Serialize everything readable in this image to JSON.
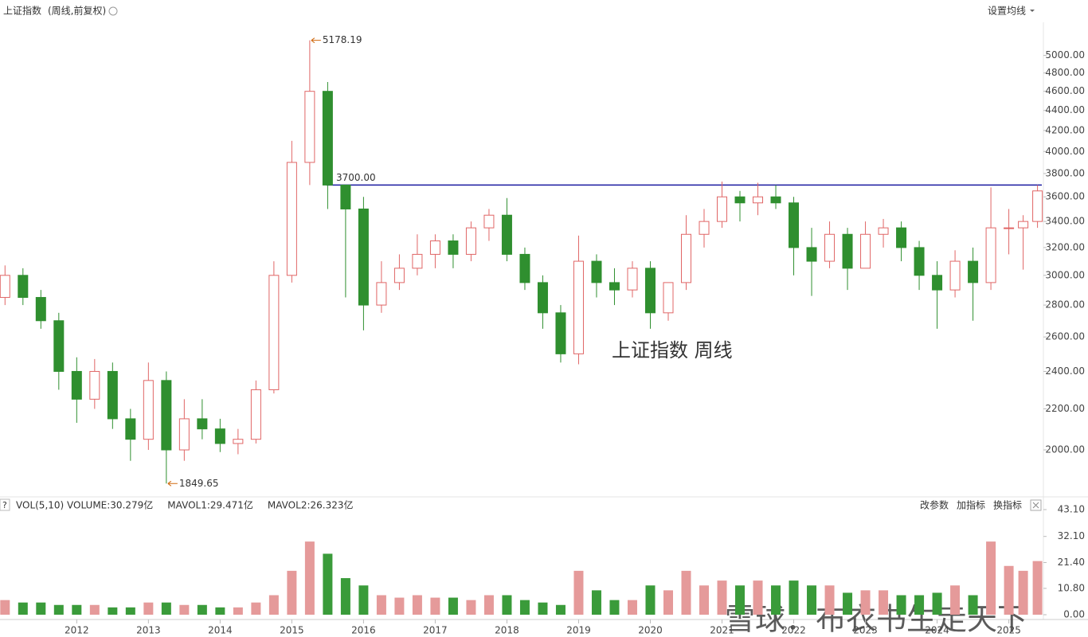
{
  "chart_data": [
    {
      "type": "candlestick",
      "title": "上证指数",
      "subtitle": "(周线,前复权)",
      "menu": "设置均线",
      "annotation": "上证指数  周线",
      "log_scale": true,
      "up_color": "#e06666",
      "down_color": "#2f8f2f",
      "hline": {
        "value": 3700,
        "label": "3700.00",
        "color": "#1a1aa0"
      },
      "x": [
        2011.0,
        2011.25,
        2011.5,
        2011.75,
        2012.0,
        2012.25,
        2012.5,
        2012.75,
        2013.0,
        2013.25,
        2013.5,
        2013.75,
        2014.0,
        2014.25,
        2014.5,
        2014.75,
        2015.0,
        2015.25,
        2015.5,
        2015.75,
        2016.0,
        2016.25,
        2016.5,
        2016.75,
        2017.0,
        2017.25,
        2017.5,
        2017.75,
        2018.0,
        2018.25,
        2018.5,
        2018.75,
        2019.0,
        2019.25,
        2019.5,
        2019.75,
        2020.0,
        2020.25,
        2020.5,
        2020.75,
        2021.0,
        2021.25,
        2021.5,
        2021.75,
        2022.0,
        2022.25,
        2022.5,
        2022.75,
        2023.0,
        2023.25,
        2023.5,
        2023.75,
        2024.0,
        2024.25,
        2024.5,
        2024.75,
        2025.0,
        2025.2,
        2025.4
      ],
      "open": [
        2850,
        3000,
        2850,
        2700,
        2400,
        2250,
        2400,
        2150,
        2050,
        2350,
        2000,
        2150,
        2100,
        2030,
        2050,
        2300,
        3000,
        3900,
        4600,
        3700,
        3500,
        2800,
        2950,
        3050,
        3150,
        3250,
        3150,
        3350,
        3450,
        3150,
        2950,
        2750,
        2500,
        3100,
        2950,
        2900,
        3050,
        2750,
        2950,
        3300,
        3400,
        3600,
        3550,
        3600,
        3550,
        3200,
        3100,
        3300,
        3050,
        3300,
        3350,
        3200,
        3000,
        2900,
        3100,
        2950,
        3350,
        3350,
        3400
      ],
      "high": [
        3070,
        3050,
        2900,
        2750,
        2480,
        2470,
        2450,
        2200,
        2450,
        2400,
        2250,
        2250,
        2150,
        2100,
        2350,
        3100,
        4100,
        5178.19,
        4700,
        3700,
        3600,
        3100,
        3150,
        3300,
        3300,
        3300,
        3400,
        3500,
        3590,
        3200,
        3000,
        2800,
        3290,
        3150,
        3050,
        3100,
        3100,
        2950,
        3450,
        3500,
        3730,
        3650,
        3720,
        3700,
        3600,
        3350,
        3400,
        3350,
        3400,
        3420,
        3400,
        3250,
        3100,
        3180,
        3200,
        3680,
        3500,
        3450,
        3700
      ],
      "low": [
        2800,
        2800,
        2650,
        2300,
        2130,
        2200,
        2100,
        1950,
        2000,
        1849.65,
        1950,
        2050,
        1990,
        1980,
        2030,
        2280,
        2950,
        3700,
        3500,
        2850,
        2640,
        2750,
        2900,
        3000,
        3050,
        3050,
        3100,
        3250,
        3100,
        2900,
        2650,
        2450,
        2440,
        2850,
        2800,
        2850,
        2650,
        2700,
        2900,
        3200,
        3350,
        3400,
        3450,
        3500,
        3000,
        2860,
        3050,
        2900,
        3050,
        3200,
        3100,
        2900,
        2650,
        2850,
        2700,
        2900,
        3150,
        3040,
        3350
      ],
      "close": [
        3000,
        2850,
        2700,
        2400,
        2250,
        2400,
        2150,
        2050,
        2350,
        2000,
        2150,
        2100,
        2030,
        2050,
        2300,
        3000,
        3900,
        4600,
        3700,
        3500,
        2800,
        2950,
        3050,
        3150,
        3250,
        3150,
        3350,
        3450,
        3150,
        2950,
        2750,
        2500,
        3100,
        2950,
        2900,
        3050,
        2750,
        2950,
        3300,
        3400,
        3600,
        3550,
        3600,
        3550,
        3200,
        3100,
        3300,
        3050,
        3300,
        3350,
        3200,
        3000,
        2900,
        3100,
        2950,
        3350,
        3350,
        3400,
        3650
      ],
      "xlim": [
        2010.93,
        2025.46
      ],
      "xticks": [
        2012,
        2013,
        2014,
        2015,
        2016,
        2017,
        2018,
        2019,
        2020,
        2021,
        2022,
        2023,
        2024,
        2025
      ],
      "ylim": [
        1800,
        5380
      ],
      "yticks": [
        {
          "value": 2000,
          "label": "2000.00"
        },
        {
          "value": 2200,
          "label": "2200.00"
        },
        {
          "value": 2400,
          "label": "2400.00"
        },
        {
          "value": 2600,
          "label": "2600.00"
        },
        {
          "value": 2800,
          "label": "2800.00"
        },
        {
          "value": 3000,
          "label": "3000.00"
        },
        {
          "value": 3200,
          "label": "3200.00"
        },
        {
          "value": 3400,
          "label": "3400.00"
        },
        {
          "value": 3600,
          "label": "3600.00"
        },
        {
          "value": 3800,
          "label": "3800.00"
        },
        {
          "value": 4000,
          "label": "4000.00"
        },
        {
          "value": 4200,
          "label": "4200.00"
        },
        {
          "value": 4400,
          "label": "4400.00"
        },
        {
          "value": 4600,
          "label": "4600.00"
        },
        {
          "value": 4800,
          "label": "4800.00"
        },
        {
          "value": 5000,
          "label": "5000.00"
        }
      ]
    },
    {
      "type": "bar",
      "indicator": "VOL(5,10)",
      "legend": [
        {
          "name": "VOLUME:30.279亿",
          "color": "#1a1a80"
        },
        {
          "name": "MAVOL1:29.471亿",
          "color": "#c020c0"
        },
        {
          "name": "MAVOL2:26.323亿",
          "color": "#888888"
        }
      ],
      "buttons": [
        "改参数",
        "加指标",
        "换指标"
      ],
      "watermark": "雪球：布衣书生走天下",
      "up_color": "#e59a9a",
      "down_color": "#3a9b3a",
      "x": [
        2011.0,
        2011.25,
        2011.5,
        2011.75,
        2012.0,
        2012.25,
        2012.5,
        2012.75,
        2013.0,
        2013.25,
        2013.5,
        2013.75,
        2014.0,
        2014.25,
        2014.5,
        2014.75,
        2015.0,
        2015.25,
        2015.5,
        2015.75,
        2016.0,
        2016.25,
        2016.5,
        2016.75,
        2017.0,
        2017.25,
        2017.5,
        2017.75,
        2018.0,
        2018.25,
        2018.5,
        2018.75,
        2019.0,
        2019.25,
        2019.5,
        2019.75,
        2020.0,
        2020.25,
        2020.5,
        2020.75,
        2021.0,
        2021.25,
        2021.5,
        2021.75,
        2022.0,
        2022.25,
        2022.5,
        2022.75,
        2023.0,
        2023.25,
        2023.5,
        2023.75,
        2024.0,
        2024.25,
        2024.5,
        2024.75,
        2025.0,
        2025.2,
        2025.4
      ],
      "values": [
        6,
        5,
        5,
        4,
        4,
        4,
        3,
        3,
        5,
        5,
        4,
        4,
        3,
        3,
        5,
        8,
        18,
        30,
        25,
        15,
        12,
        8,
        7,
        8,
        7,
        7,
        6,
        8,
        8,
        6,
        5,
        4,
        18,
        10,
        6,
        6,
        12,
        10,
        18,
        12,
        14,
        12,
        14,
        12,
        14,
        12,
        12,
        9,
        10,
        10,
        8,
        8,
        9,
        12,
        8,
        30,
        20,
        18,
        22
      ],
      "xlim": [
        2010.93,
        2025.46
      ],
      "ylim": [
        0,
        48
      ],
      "yticks": [
        {
          "value": 0,
          "label": "0.00"
        },
        {
          "value": 10.8,
          "label": "10.80"
        },
        {
          "value": 21.4,
          "label": "21.40"
        },
        {
          "value": 32.1,
          "label": "32.10"
        },
        {
          "value": 43.1,
          "label": "43.10"
        }
      ]
    }
  ]
}
